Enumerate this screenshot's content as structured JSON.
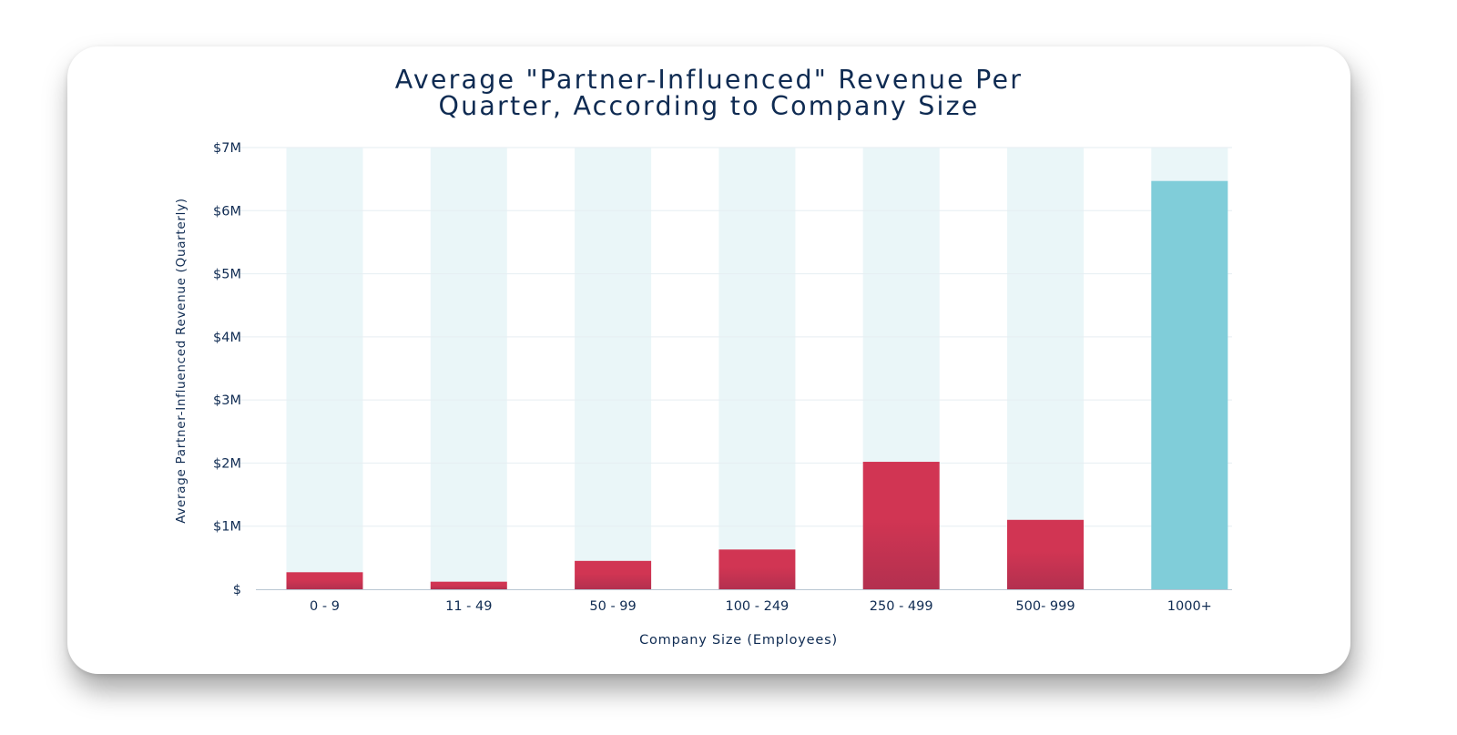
{
  "chart_data": {
    "type": "bar",
    "title_lines": [
      "Average \"Partner-Influenced\" Revenue Per",
      "Quarter, According to Company Size"
    ],
    "xlabel": "Company Size (Employees)",
    "ylabel": "Average Partner-Influenced Revenue (Quarterly)",
    "categories": [
      "0 - 9",
      "11 - 49",
      "50 - 99",
      "100 - 249",
      "250 - 499",
      "500- 999",
      "1000+"
    ],
    "values": [
      0.27,
      0.12,
      0.45,
      0.63,
      2.02,
      1.1,
      6.47
    ],
    "value_unit": "millions USD",
    "ylim": [
      0,
      7
    ],
    "yticks": [
      0,
      1,
      2,
      3,
      4,
      5,
      6,
      7
    ],
    "ytick_labels": [
      "$",
      "$1M",
      "$2M",
      "$3M",
      "$4M",
      "$5M",
      "$6M",
      "$7M"
    ],
    "grid": true,
    "background_bands": true,
    "highlighted_category": "1000+",
    "colors": {
      "bar_top": "#d13553",
      "bar_bottom": "#b3304f",
      "highlight_bar": "#80cdd9",
      "band": "#eaf6f8",
      "grid": "#e6eef2",
      "axis": "#0f2b52",
      "baseline": "#b9c6d2"
    }
  }
}
